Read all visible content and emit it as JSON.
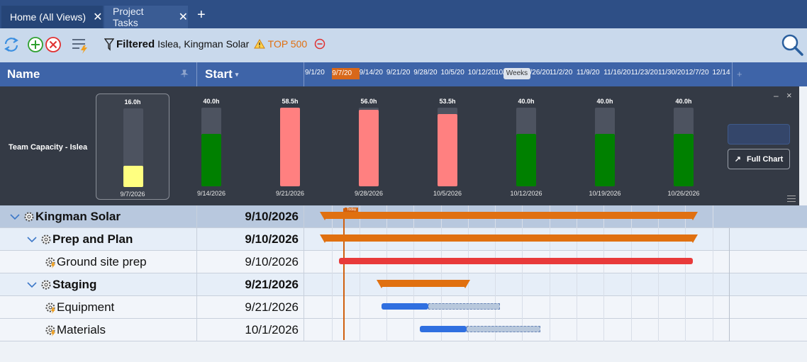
{
  "tabs": [
    {
      "label": "Home (All Views)",
      "close": "✕"
    },
    {
      "label": "Project Tasks",
      "close": "✕"
    }
  ],
  "new_tab": "+",
  "toolbar": {
    "filter_label": "Filtered",
    "filter_value": "Islea, Kingman Solar",
    "top_label": "TOP 500"
  },
  "columns": {
    "name": "Name",
    "start": "Start"
  },
  "timeline": {
    "weeks": [
      "9/1/20",
      "9/7/20",
      "9/14/20",
      "9/21/20",
      "9/28/20",
      "10/5/20",
      "10/12/20",
      "10/19",
      "10/26/20",
      "11/2/20",
      "11/9/20",
      "11/16/20",
      "11/23/20",
      "11/30/20",
      "12/7/20",
      "12/14"
    ],
    "scale_label": "Weeks",
    "today_label": "Today"
  },
  "capacity": {
    "label": "Team Capacity - Islea",
    "columns": [
      {
        "hours": "16.0h",
        "date": "9/7/2026",
        "level": 0.27,
        "color": "#ffff80",
        "selected": true
      },
      {
        "hours": "40.0h",
        "date": "9/14/2026",
        "level": 0.67,
        "color": "#008000"
      },
      {
        "hours": "58.5h",
        "date": "9/21/2026",
        "level": 1.0,
        "color": "#ff8080"
      },
      {
        "hours": "56.0h",
        "date": "9/28/2026",
        "level": 0.97,
        "color": "#ff8080"
      },
      {
        "hours": "53.5h",
        "date": "10/5/2026",
        "level": 0.92,
        "color": "#ff8080"
      },
      {
        "hours": "40.0h",
        "date": "10/12/2026",
        "level": 0.67,
        "color": "#008000"
      },
      {
        "hours": "40.0h",
        "date": "10/19/2026",
        "level": 0.67,
        "color": "#008000"
      },
      {
        "hours": "40.0h",
        "date": "10/26/2026",
        "level": 0.67,
        "color": "#008000"
      }
    ],
    "full_chart_label": "Full Chart",
    "minimize": "–",
    "close": "×"
  },
  "rows": [
    {
      "name": "Kingman Solar",
      "start": "9/10/2026",
      "level": 0,
      "bold": true
    },
    {
      "name": "Prep and Plan",
      "start": "9/10/2026",
      "level": 1,
      "bold": true
    },
    {
      "name": "Ground site prep",
      "start": "9/10/2026",
      "level": 2,
      "bold": false
    },
    {
      "name": "Staging",
      "start": "9/21/2026",
      "level": 1,
      "bold": true
    },
    {
      "name": "Equipment",
      "start": "9/21/2026",
      "level": 2,
      "bold": false
    },
    {
      "name": "Materials",
      "start": "10/1/2026",
      "level": 2,
      "bold": false
    }
  ],
  "colors": {
    "summary_bar": "#e07010",
    "critical_bar": "#e83a3a",
    "task_bar": "#2f6fe0",
    "today_line": "#d06010"
  }
}
